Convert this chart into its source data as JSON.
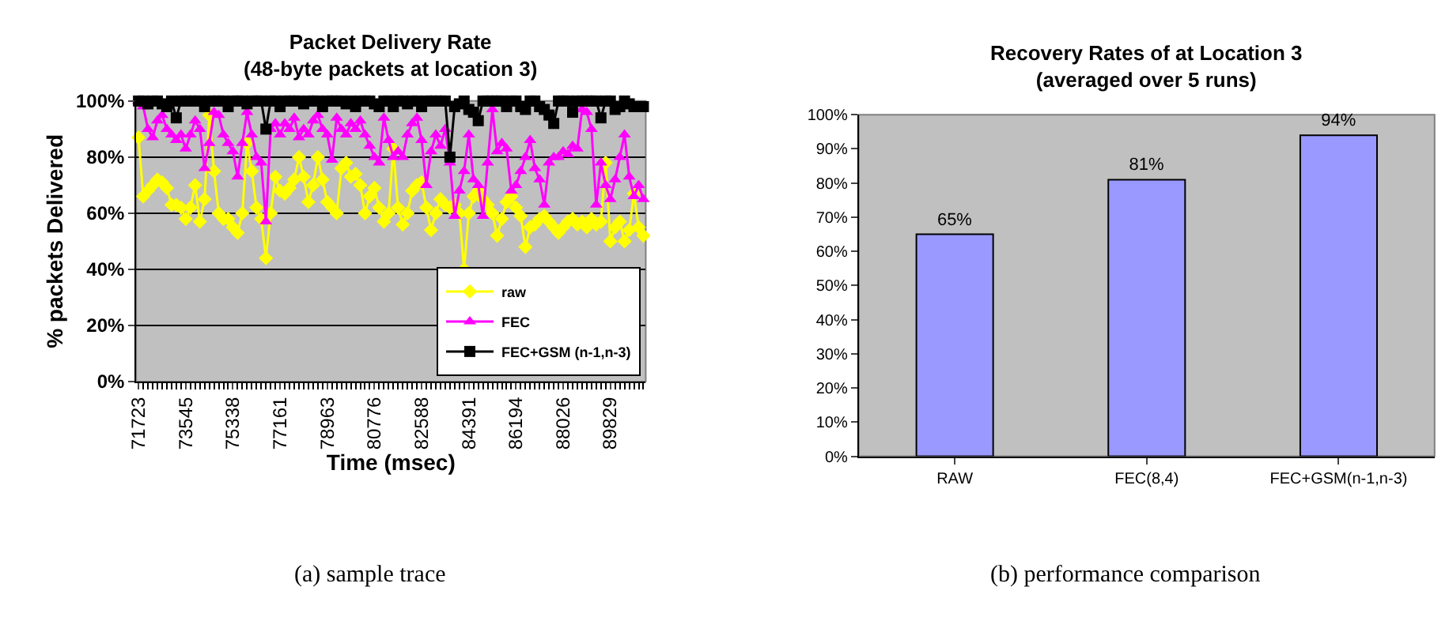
{
  "chart_data": [
    {
      "type": "line",
      "title": "Packet Delivery Rate\n(48-byte packets at location 3)",
      "xlabel": "Time (msec)",
      "ylabel": "% packets Delivered",
      "categories": [
        "71723",
        null,
        null,
        null,
        null,
        null,
        null,
        null,
        null,
        null,
        "73545",
        null,
        null,
        null,
        null,
        null,
        null,
        null,
        null,
        null,
        "75338",
        null,
        null,
        null,
        null,
        null,
        null,
        null,
        null,
        null,
        "77161",
        null,
        null,
        null,
        null,
        null,
        null,
        null,
        null,
        null,
        "78963",
        null,
        null,
        null,
        null,
        null,
        null,
        null,
        null,
        null,
        "80776",
        null,
        null,
        null,
        null,
        null,
        null,
        null,
        null,
        null,
        "82588",
        null,
        null,
        null,
        null,
        null,
        null,
        null,
        null,
        null,
        "84391",
        null,
        null,
        null,
        null,
        null,
        null,
        null,
        null,
        null,
        "86194",
        null,
        null,
        null,
        null,
        null,
        null,
        null,
        null,
        null,
        "88026",
        null,
        null,
        null,
        null,
        null,
        null,
        null,
        null,
        null,
        "89829",
        null,
        null,
        null,
        null,
        null,
        null,
        null
      ],
      "series": [
        {
          "name": "raw",
          "color": "#ffff00",
          "marker": "diamond",
          "values": [
            87,
            66,
            68,
            70,
            72,
            71,
            69,
            63,
            63,
            62,
            58,
            62,
            70,
            57,
            65,
            95,
            75,
            60,
            58,
            58,
            55,
            53,
            60,
            85,
            75,
            62,
            58,
            44,
            60,
            73,
            68,
            67,
            69,
            72,
            80,
            73,
            64,
            70,
            80,
            72,
            64,
            62,
            60,
            76,
            78,
            73,
            74,
            70,
            60,
            66,
            69,
            62,
            57,
            60,
            83,
            62,
            56,
            60,
            68,
            70,
            71,
            62,
            54,
            60,
            65,
            63,
            62,
            63,
            60,
            40,
            60,
            66,
            68,
            65,
            63,
            60,
            52,
            58,
            64,
            66,
            62,
            59,
            48,
            55,
            56,
            58,
            59,
            57,
            55,
            53,
            55,
            57,
            58,
            56,
            57,
            55,
            58,
            56,
            57,
            78,
            50,
            55,
            57,
            50,
            54,
            67,
            55,
            52
          ]
        },
        {
          "name": "FEC",
          "color": "#ff00ff",
          "marker": "triangle",
          "values": [
            100,
            98,
            90,
            87,
            93,
            95,
            90,
            88,
            86,
            88,
            83,
            88,
            93,
            90,
            76,
            85,
            96,
            95,
            88,
            85,
            82,
            73,
            85,
            96,
            88,
            80,
            78,
            57,
            90,
            92,
            88,
            92,
            90,
            94,
            87,
            90,
            88,
            93,
            95,
            90,
            88,
            79,
            94,
            90,
            88,
            92,
            90,
            93,
            88,
            84,
            80,
            78,
            94,
            86,
            80,
            82,
            80,
            88,
            92,
            94,
            86,
            70,
            82,
            88,
            84,
            90,
            78,
            59,
            68,
            75,
            88,
            72,
            70,
            59,
            78,
            97,
            82,
            85,
            83,
            68,
            70,
            75,
            80,
            86,
            76,
            72,
            63,
            78,
            80,
            80,
            82,
            81,
            84,
            83,
            97,
            96,
            90,
            63,
            78,
            70,
            65,
            72,
            80,
            88,
            73,
            66,
            70,
            65
          ]
        },
        {
          "name": "FEC+GSM (n-1,n-3)",
          "color": "#000000",
          "marker": "square",
          "values": [
            100,
            100,
            99,
            100,
            100,
            99,
            98,
            100,
            94,
            100,
            100,
            100,
            100,
            100,
            98,
            100,
            100,
            100,
            100,
            98,
            100,
            100,
            100,
            99,
            100,
            100,
            100,
            90,
            100,
            100,
            98,
            100,
            100,
            100,
            100,
            99,
            100,
            100,
            100,
            98,
            100,
            100,
            100,
            100,
            99,
            100,
            98,
            100,
            100,
            100,
            99,
            98,
            100,
            100,
            98,
            100,
            100,
            99,
            100,
            100,
            98,
            100,
            100,
            100,
            100,
            100,
            80,
            98,
            99,
            100,
            97,
            96,
            93,
            100,
            100,
            100,
            100,
            100,
            98,
            100,
            100,
            98,
            97,
            100,
            100,
            98,
            97,
            95,
            92,
            100,
            100,
            100,
            96,
            100,
            100,
            100,
            100,
            100,
            94,
            100,
            100,
            97,
            98,
            100,
            99,
            98,
            98,
            98
          ]
        }
      ],
      "ylim": [
        0,
        100
      ],
      "yticks": [
        {
          "value": 0,
          "label": "0%"
        },
        {
          "value": 20,
          "label": "20%"
        },
        {
          "value": 40,
          "label": "40%"
        },
        {
          "value": 60,
          "label": "60%"
        },
        {
          "value": 80,
          "label": "80%"
        },
        {
          "value": 100,
          "label": "100%"
        }
      ],
      "grid": "y",
      "legend": "bottom right",
      "annotations": [
        "(a) sample trace"
      ]
    },
    {
      "type": "bar",
      "title": "Recovery Rates of at Location 3\n(averaged over 5 runs)",
      "categories": [
        "RAW",
        "FEC(8,4)",
        "FEC+GSM(n-1,n-3)"
      ],
      "values": [
        65,
        81,
        94
      ],
      "value_labels": [
        "65%",
        "81%",
        "94%"
      ],
      "color": "#9999ff",
      "ylim": [
        0,
        100
      ],
      "yticks": [
        {
          "value": 0,
          "label": "0%"
        },
        {
          "value": 10,
          "label": "10%"
        },
        {
          "value": 20,
          "label": "20%"
        },
        {
          "value": 30,
          "label": "30%"
        },
        {
          "value": 40,
          "label": "40%"
        },
        {
          "value": 50,
          "label": "50%"
        },
        {
          "value": 60,
          "label": "60%"
        },
        {
          "value": 70,
          "label": "70%"
        },
        {
          "value": 80,
          "label": "80%"
        },
        {
          "value": 90,
          "label": "90%"
        },
        {
          "value": 100,
          "label": "100%"
        }
      ],
      "grid": false,
      "annotations": [
        "(b) performance comparison"
      ]
    }
  ]
}
